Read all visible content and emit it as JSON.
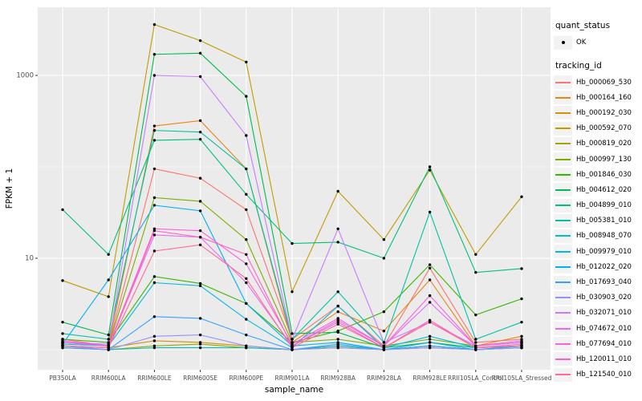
{
  "axes": {
    "x_label": "sample_name",
    "y_label": "FPKM + 1",
    "y_ticks": [
      {
        "value": 10,
        "label": "10"
      },
      {
        "value": 1000,
        "label": "1000"
      }
    ],
    "minor_gridline_values": [
      1,
      100
    ],
    "tick_color": "#4D4D4D",
    "panel_background": "#EBEBEB",
    "gridline_color": "#FFFFFF"
  },
  "legend": {
    "quant_status_title": "quant_status",
    "ok_label": "OK",
    "tracking_title": "tracking_id"
  },
  "chart_data": {
    "type": "line",
    "title": "",
    "xlabel": "sample_name",
    "ylabel": "FPKM + 1",
    "yscale": "log10",
    "ylim": [
      0.75,
      5500
    ],
    "grid": "on",
    "legend_position": "right",
    "point_marker": "black-dot",
    "quant_status_legend": {
      "title": "quant_status",
      "entries": [
        {
          "label": "OK",
          "marker": "point"
        }
      ]
    },
    "x": [
      "PB350LA",
      "RRIM600LA",
      "RRIM600LE",
      "RRIM600SE",
      "RRIM600PE",
      "RRIM901LA",
      "RRIM928BA",
      "RRIM928LA",
      "RRIM928LE",
      "RRII105LA_Control",
      "RRII105LA_Stressed"
    ],
    "series": [
      {
        "id": "Hb_000069_530",
        "color": "#F8766D",
        "quant_status": "OK",
        "values": [
          1.3,
          1.1,
          95,
          75,
          34,
          1.3,
          3.0,
          1.1,
          7.8,
          1.2,
          1.3
        ]
      },
      {
        "id": "Hb_000164_160",
        "color": "#E8861A",
        "quant_status": "OK",
        "values": [
          1.2,
          1.1,
          280,
          320,
          95,
          1.2,
          2.6,
          1.6,
          5.8,
          1.1,
          1.4
        ]
      },
      {
        "id": "Hb_000192_030",
        "color": "#D39200",
        "quant_status": "OK",
        "values": [
          1.1,
          1.05,
          1.25,
          1.2,
          1.1,
          1.0,
          1.1,
          1.0,
          1.1,
          1.0,
          1.1
        ]
      },
      {
        "id": "Hb_000592_070",
        "color": "#BF9C00",
        "quant_status": "OK",
        "values": [
          5.7,
          3.8,
          3600,
          2400,
          1400,
          4.3,
          54,
          16,
          92,
          11,
          47
        ]
      },
      {
        "id": "Hb_000819_020",
        "color": "#A3A500",
        "quant_status": "OK",
        "values": [
          1.05,
          1.0,
          1.1,
          1.15,
          1.05,
          1.0,
          1.05,
          1.0,
          1.05,
          1.0,
          1.05
        ]
      },
      {
        "id": "Hb_000997_130",
        "color": "#7CAE00",
        "quant_status": "OK",
        "values": [
          1.2,
          1.1,
          46,
          42,
          16,
          1.2,
          1.3,
          1.1,
          1.3,
          1.1,
          1.2
        ]
      },
      {
        "id": "Hb_001846_030",
        "color": "#39B600",
        "quant_status": "OK",
        "values": [
          1.3,
          1.2,
          6.3,
          5.3,
          3.2,
          1.2,
          1.6,
          2.6,
          8.5,
          2.4,
          3.6
        ]
      },
      {
        "id": "Hb_004612_020",
        "color": "#00BB4E",
        "quant_status": "OK",
        "values": [
          2.0,
          1.45,
          1700,
          1750,
          590,
          1.5,
          1.55,
          1.05,
          1.2,
          1.05,
          1.1
        ]
      },
      {
        "id": "Hb_004899_010",
        "color": "#00BF7D",
        "quant_status": "OK",
        "values": [
          34,
          11,
          195,
          200,
          50,
          14.5,
          15,
          10,
          100,
          7.0,
          7.7
        ]
      },
      {
        "id": "Hb_005381_010",
        "color": "#00C1A3",
        "quant_status": "OK",
        "values": [
          1.5,
          1.3,
          250,
          240,
          95,
          1.3,
          4.3,
          1.2,
          32,
          1.3,
          2.0
        ]
      },
      {
        "id": "Hb_008948_070",
        "color": "#00BFC4",
        "quant_status": "OK",
        "values": [
          1.1,
          1.0,
          1.05,
          1.05,
          1.05,
          1.0,
          1.1,
          1.0,
          1.1,
          1.0,
          1.05
        ]
      },
      {
        "id": "Hb_009979_010",
        "color": "#00BAE0",
        "quant_status": "OK",
        "values": [
          1.15,
          1.1,
          5.4,
          5.0,
          2.15,
          1.05,
          3.0,
          1.05,
          1.4,
          1.05,
          1.1
        ]
      },
      {
        "id": "Hb_012022_020",
        "color": "#00B0F6",
        "quant_status": "OK",
        "values": [
          1.15,
          5.8,
          38,
          33,
          3.2,
          1.1,
          1.2,
          1.0,
          1.2,
          1.0,
          1.1
        ]
      },
      {
        "id": "Hb_017693_040",
        "color": "#35A2FF",
        "quant_status": "OK",
        "values": [
          1.05,
          1.0,
          2.3,
          2.2,
          1.45,
          1.0,
          1.15,
          1.0,
          1.1,
          1.0,
          1.05
        ]
      },
      {
        "id": "Hb_030903_020",
        "color": "#9590FF",
        "quant_status": "OK",
        "values": [
          1.1,
          1.0,
          1.4,
          1.45,
          1.1,
          1.0,
          1.05,
          1.0,
          1.05,
          1.0,
          1.05
        ]
      },
      {
        "id": "Hb_032071_010",
        "color": "#C77CFF",
        "quant_status": "OK",
        "values": [
          1.2,
          1.15,
          1000,
          970,
          220,
          1.3,
          21,
          1.2,
          2.0,
          1.1,
          1.2
        ]
      },
      {
        "id": "Hb_074672_010",
        "color": "#E76BF3",
        "quant_status": "OK",
        "values": [
          1.2,
          1.1,
          18,
          17,
          5.4,
          1.1,
          2.1,
          1.1,
          3.3,
          1.1,
          1.2
        ]
      },
      {
        "id": "Hb_077694_010",
        "color": "#FA62DB",
        "quant_status": "OK",
        "values": [
          1.25,
          1.1,
          21,
          20,
          8.7,
          1.15,
          2.2,
          1.1,
          3.9,
          1.1,
          1.25
        ]
      },
      {
        "id": "Hb_120011_010",
        "color": "#FF62BC",
        "quant_status": "OK",
        "values": [
          1.1,
          1.05,
          20,
          17,
          11,
          1.1,
          2.0,
          1.05,
          2.1,
          1.05,
          1.15
        ]
      },
      {
        "id": "Hb_121540_010",
        "color": "#FF6A98",
        "quant_status": "OK",
        "values": [
          1.1,
          1.05,
          12,
          14,
          6.0,
          1.05,
          1.9,
          1.05,
          2.0,
          1.05,
          1.1
        ]
      }
    ]
  }
}
